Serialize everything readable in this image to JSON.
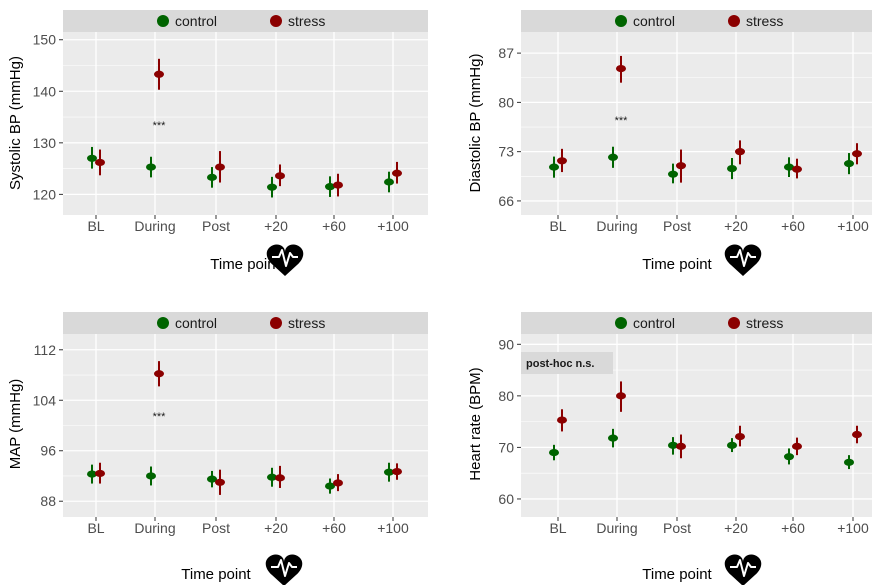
{
  "colors": {
    "control": "#006400",
    "stress": "#8b0000",
    "panel": "#ebebeb",
    "strip": "#d9d9d9",
    "grid": "#ffffff"
  },
  "icon": "heart-ecg-icon",
  "chart_data": [
    {
      "type": "scatter",
      "ylabel": "Systolic BP (mmHg)",
      "xlabel": "Time point",
      "categories": [
        "BL",
        "During",
        "Post",
        "+20",
        "+60",
        "+100"
      ],
      "yticks": [
        120,
        130,
        140,
        150
      ],
      "ylim": [
        116,
        151.5
      ],
      "legend": [
        "control",
        "stress"
      ],
      "legend_position": "top",
      "annotations": [
        {
          "text": "***",
          "x": "During",
          "y": 133.5
        }
      ],
      "series": [
        {
          "name": "control",
          "values": [
            127.0,
            125.3,
            123.3,
            121.4,
            121.5,
            122.4
          ],
          "lower": [
            125.0,
            123.3,
            121.3,
            119.4,
            119.5,
            120.4
          ],
          "upper": [
            129.2,
            127.3,
            125.3,
            123.4,
            123.5,
            124.4
          ]
        },
        {
          "name": "stress",
          "values": [
            126.2,
            143.3,
            125.3,
            123.6,
            121.8,
            124.1
          ],
          "lower": [
            123.7,
            140.3,
            122.3,
            121.6,
            119.6,
            122.1
          ],
          "upper": [
            128.7,
            146.3,
            128.4,
            125.8,
            124.0,
            126.3
          ]
        }
      ]
    },
    {
      "type": "scatter",
      "ylabel": "Diastolic BP (mmHg)",
      "xlabel": "Time point",
      "categories": [
        "BL",
        "During",
        "Post",
        "+20",
        "+60",
        "+100"
      ],
      "yticks": [
        66,
        73,
        80,
        87
      ],
      "ylim": [
        64,
        90
      ],
      "legend": [
        "control",
        "stress"
      ],
      "legend_position": "top",
      "annotations": [
        {
          "text": "***",
          "x": "During",
          "y": 77.5
        }
      ],
      "series": [
        {
          "name": "control",
          "values": [
            70.8,
            72.2,
            69.8,
            70.6,
            70.8,
            71.3
          ],
          "lower": [
            69.3,
            70.7,
            68.5,
            69.1,
            69.4,
            69.8
          ],
          "upper": [
            72.3,
            73.7,
            71.3,
            72.1,
            72.2,
            72.8
          ]
        },
        {
          "name": "stress",
          "values": [
            71.7,
            84.8,
            71.0,
            73.0,
            70.5,
            72.7
          ],
          "lower": [
            70.1,
            82.8,
            68.6,
            71.2,
            69.2,
            71.2
          ],
          "upper": [
            73.4,
            86.6,
            73.3,
            74.6,
            72.0,
            74.2
          ]
        }
      ]
    },
    {
      "type": "scatter",
      "ylabel": "MAP (mmHg)",
      "xlabel": "Time point",
      "categories": [
        "BL",
        "During",
        "Post",
        "+20",
        "+60",
        "+100"
      ],
      "yticks": [
        88,
        96,
        104,
        112
      ],
      "ylim": [
        85.5,
        114.5
      ],
      "legend": [
        "control",
        "stress"
      ],
      "legend_position": "top",
      "annotations": [
        {
          "text": "***",
          "x": "During",
          "y": 101.5
        }
      ],
      "series": [
        {
          "name": "control",
          "values": [
            92.3,
            92.0,
            91.5,
            91.8,
            90.4,
            92.6
          ],
          "lower": [
            90.8,
            90.5,
            90.2,
            90.3,
            89.2,
            91.1
          ],
          "upper": [
            93.8,
            93.5,
            92.8,
            93.3,
            91.6,
            94.1
          ]
        },
        {
          "name": "stress",
          "values": [
            92.4,
            108.2,
            91.0,
            91.7,
            90.9,
            92.7
          ],
          "lower": [
            90.8,
            106.2,
            89.0,
            90.1,
            89.6,
            91.4
          ],
          "upper": [
            94.1,
            110.2,
            93.0,
            93.6,
            92.3,
            94.0
          ]
        }
      ]
    },
    {
      "type": "scatter",
      "ylabel": "Heart rate (BPM)",
      "xlabel": "Time point",
      "categories": [
        "BL",
        "During",
        "Post",
        "+20",
        "+60",
        "+100"
      ],
      "yticks": [
        60,
        70,
        80,
        90
      ],
      "ylim": [
        56.5,
        92
      ],
      "legend": [
        "control",
        "stress"
      ],
      "legend_position": "top",
      "annotations": [
        {
          "text": "post-hoc n.s.",
          "position": "top-left"
        }
      ],
      "series": [
        {
          "name": "control",
          "values": [
            69.0,
            71.8,
            70.4,
            70.4,
            68.2,
            67.1
          ],
          "lower": [
            67.5,
            70.0,
            68.6,
            69.1,
            66.7,
            65.8
          ],
          "upper": [
            70.5,
            73.6,
            72.0,
            71.8,
            69.8,
            68.5
          ]
        },
        {
          "name": "stress",
          "values": [
            75.3,
            80.0,
            70.2,
            72.1,
            70.2,
            72.5
          ],
          "lower": [
            73.1,
            76.9,
            67.9,
            70.2,
            68.5,
            70.8
          ],
          "upper": [
            77.4,
            82.8,
            72.5,
            74.2,
            71.9,
            74.2
          ]
        }
      ]
    }
  ]
}
